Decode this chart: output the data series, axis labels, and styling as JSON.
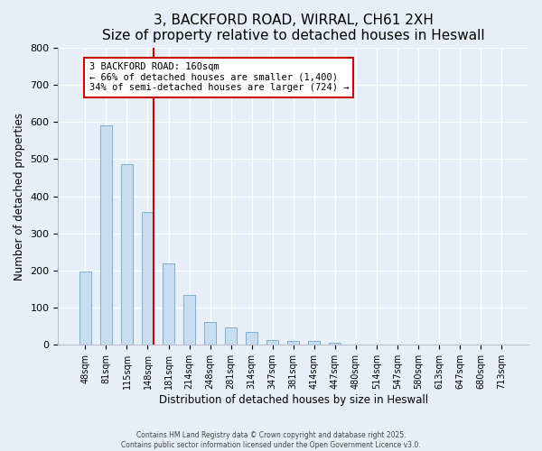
{
  "title": "3, BACKFORD ROAD, WIRRAL, CH61 2XH",
  "subtitle": "Size of property relative to detached houses in Heswall",
  "xlabel": "Distribution of detached houses by size in Heswall",
  "ylabel": "Number of detached properties",
  "bar_labels": [
    "48sqm",
    "81sqm",
    "115sqm",
    "148sqm",
    "181sqm",
    "214sqm",
    "248sqm",
    "281sqm",
    "314sqm",
    "347sqm",
    "381sqm",
    "414sqm",
    "447sqm",
    "480sqm",
    "514sqm",
    "547sqm",
    "580sqm",
    "613sqm",
    "647sqm",
    "680sqm",
    "713sqm"
  ],
  "bar_values": [
    197,
    590,
    487,
    358,
    220,
    135,
    62,
    47,
    35,
    14,
    11,
    10,
    5,
    0,
    0,
    0,
    0,
    0,
    0,
    0,
    0
  ],
  "bar_color": "#c8ddf0",
  "bar_edge_color": "#7aafd4",
  "vline_color": "#cc0000",
  "annotation_text": "3 BACKFORD ROAD: 160sqm\n← 66% of detached houses are smaller (1,400)\n34% of semi-detached houses are larger (724) →",
  "annotation_box_color": "#ffffff",
  "annotation_box_edge": "#cc0000",
  "ylim": [
    0,
    800
  ],
  "yticks": [
    0,
    100,
    200,
    300,
    400,
    500,
    600,
    700,
    800
  ],
  "background_color": "#e8eef8",
  "grid_color": "#ffffff",
  "footer_line1": "Contains HM Land Registry data © Crown copyright and database right 2025.",
  "footer_line2": "Contains public sector information licensed under the Open Government Licence v3.0.",
  "title_fontsize": 11,
  "bar_width": 0.55
}
